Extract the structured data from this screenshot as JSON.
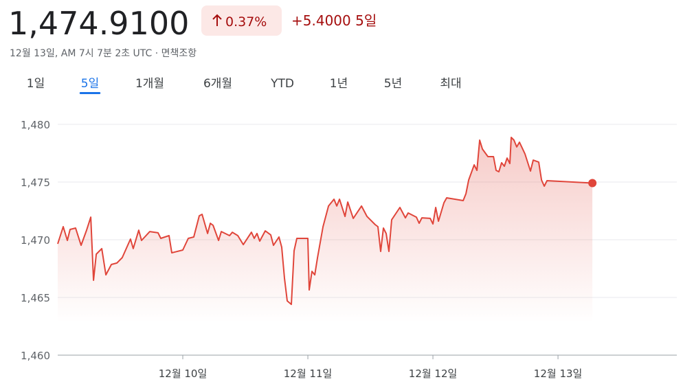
{
  "quote": {
    "price": "1,474.9100",
    "change_pct": "0.37%",
    "change": "+5.4000",
    "period": "5일",
    "timestamp": "12월 13일, AM 7시 7분 2초 UTC",
    "separator": "·",
    "disclaimer": "면책조항"
  },
  "tabs": [
    "1일",
    "5일",
    "1개월",
    "6개월",
    "YTD",
    "1년",
    "5년",
    "최대"
  ],
  "selected_tab": 1,
  "chart_data": {
    "type": "line",
    "color": "#e0453a",
    "grid": true,
    "xlim": [
      9,
      13.95
    ],
    "ylim": [
      1460,
      1482
    ],
    "yticks": [
      {
        "value": 1460,
        "label": "1,460"
      },
      {
        "value": 1465,
        "label": "1,465"
      },
      {
        "value": 1470,
        "label": "1,470"
      },
      {
        "value": 1475,
        "label": "1,475"
      },
      {
        "value": 1480,
        "label": "1,480"
      }
    ],
    "xticks": [
      {
        "value": 10,
        "label": "12월 10일"
      },
      {
        "value": 11,
        "label": "12월 11일"
      },
      {
        "value": 12,
        "label": "12월 12일"
      },
      {
        "value": 13,
        "label": "12월 13일"
      }
    ],
    "x": [
      9.0,
      9.044,
      9.077,
      9.099,
      9.143,
      9.187,
      9.231,
      9.264,
      9.286,
      9.308,
      9.352,
      9.385,
      9.429,
      9.473,
      9.516,
      9.582,
      9.604,
      9.648,
      9.67,
      9.736,
      9.802,
      9.824,
      9.89,
      9.912,
      10.0,
      10.044,
      10.088,
      10.132,
      10.154,
      10.198,
      10.22,
      10.242,
      10.286,
      10.308,
      10.374,
      10.396,
      10.44,
      10.484,
      10.549,
      10.571,
      10.593,
      10.615,
      10.659,
      10.703,
      10.725,
      10.769,
      10.791,
      10.813,
      10.835,
      10.868,
      10.89,
      10.912,
      11.0,
      11.011,
      11.033,
      11.055,
      11.077,
      11.121,
      11.165,
      11.209,
      11.231,
      11.253,
      11.297,
      11.319,
      11.363,
      11.429,
      11.473,
      11.538,
      11.56,
      11.582,
      11.604,
      11.626,
      11.648,
      11.67,
      11.736,
      11.78,
      11.802,
      11.868,
      11.89,
      11.912,
      11.978,
      12.0,
      12.022,
      12.044,
      12.088,
      12.11,
      12.176,
      12.242,
      12.264,
      12.286,
      12.33,
      12.352,
      12.374,
      12.396,
      12.44,
      12.484,
      12.505,
      12.527,
      12.549,
      12.571,
      12.593,
      12.615,
      12.626,
      12.648,
      12.67,
      12.692,
      12.736,
      12.78,
      12.802,
      12.846,
      12.868,
      12.89,
      12.912,
      13.275
    ],
    "values": [
      1469.64,
      1471.13,
      1469.94,
      1470.89,
      1471.01,
      1469.52,
      1470.83,
      1471.96,
      1466.49,
      1468.75,
      1469.23,
      1466.96,
      1467.86,
      1467.98,
      1468.45,
      1470.06,
      1469.23,
      1470.83,
      1469.94,
      1470.71,
      1470.6,
      1470.12,
      1470.36,
      1468.87,
      1469.11,
      1470.12,
      1470.24,
      1472.08,
      1472.2,
      1470.54,
      1471.43,
      1471.25,
      1469.94,
      1470.71,
      1470.36,
      1470.65,
      1470.36,
      1469.58,
      1470.65,
      1470.12,
      1470.54,
      1469.88,
      1470.77,
      1470.42,
      1469.52,
      1470.24,
      1469.35,
      1466.67,
      1464.7,
      1464.4,
      1469.05,
      1470.12,
      1470.12,
      1465.65,
      1467.26,
      1466.96,
      1468.45,
      1471.13,
      1472.92,
      1473.51,
      1472.92,
      1473.51,
      1472.02,
      1473.27,
      1471.85,
      1472.92,
      1472.02,
      1471.31,
      1471.13,
      1468.99,
      1471.01,
      1470.54,
      1468.99,
      1471.73,
      1472.8,
      1471.9,
      1472.32,
      1471.96,
      1471.43,
      1471.9,
      1471.85,
      1471.37,
      1472.8,
      1471.61,
      1473.21,
      1473.63,
      1473.51,
      1473.39,
      1473.99,
      1475.18,
      1476.49,
      1476.01,
      1478.63,
      1477.86,
      1477.2,
      1477.2,
      1476.01,
      1475.89,
      1476.67,
      1476.37,
      1477.08,
      1476.61,
      1478.87,
      1478.63,
      1478.04,
      1478.45,
      1477.44,
      1475.95,
      1476.9,
      1476.73,
      1475.18,
      1474.64,
      1475.12,
      1474.91
    ]
  }
}
